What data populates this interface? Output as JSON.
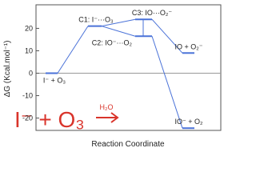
{
  "chart_data": {
    "type": "energy-diagram",
    "ylabel": "ΔG (Kcal.mol⁻¹)",
    "xlabel": "Reaction Coordinate",
    "states": [
      "I⁻ + O₃",
      "C1: I⁻···O₃",
      "C3: IO···O₂⁻",
      "C2: IO⁻···O₂",
      "IO + O₂⁻",
      "IO⁻ + O₂"
    ],
    "values": [
      0,
      21,
      24,
      16.5,
      9,
      -24.5
    ],
    "color": "#4a72d8",
    "ylim": [
      -25.5,
      30.5
    ],
    "yticks": [
      20,
      10,
      0,
      -10,
      -20
    ],
    "annotation": "I⁻ + O₃",
    "arrow_label": "H₂O"
  }
}
